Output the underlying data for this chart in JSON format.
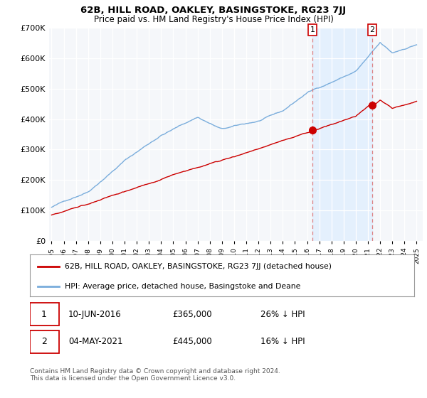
{
  "title": "62B, HILL ROAD, OAKLEY, BASINGSTOKE, RG23 7JJ",
  "subtitle": "Price paid vs. HM Land Registry's House Price Index (HPI)",
  "legend_line1": "62B, HILL ROAD, OAKLEY, BASINGSTOKE, RG23 7JJ (detached house)",
  "legend_line2": "HPI: Average price, detached house, Basingstoke and Deane",
  "annotation1_date": "10-JUN-2016",
  "annotation1_price": "£365,000",
  "annotation1_hpi": "26% ↓ HPI",
  "annotation2_date": "04-MAY-2021",
  "annotation2_price": "£445,000",
  "annotation2_hpi": "16% ↓ HPI",
  "footer": "Contains HM Land Registry data © Crown copyright and database right 2024.\nThis data is licensed under the Open Government Licence v3.0.",
  "line_color_red": "#cc0000",
  "line_color_blue": "#7aaddc",
  "shade_color": "#ddeeff",
  "annotation_box_color": "#cc0000",
  "grid_color": "#cccccc",
  "bg_color": "#f5f7fa",
  "ylim": [
    0,
    700000
  ],
  "yticks": [
    0,
    100000,
    200000,
    300000,
    400000,
    500000,
    600000,
    700000
  ],
  "sale1_x": 2016.44,
  "sale1_y": 365000,
  "sale2_x": 2021.34,
  "sale2_y": 445000,
  "xmin": 1994.8,
  "xmax": 2025.5
}
